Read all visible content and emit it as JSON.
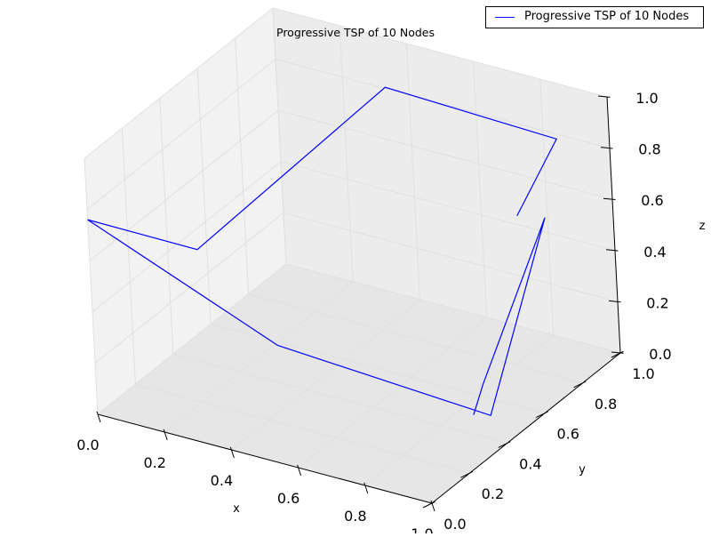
{
  "chart_data": {
    "type": "line",
    "projection": "3d",
    "title": "Progressive TSP of 10 Nodes",
    "xlabel": "x",
    "ylabel": "y",
    "zlabel": "z",
    "xlim": [
      0.0,
      1.0
    ],
    "ylim": [
      0.0,
      1.0
    ],
    "zlim": [
      0.0,
      1.0
    ],
    "x_ticks": [
      "0.0",
      "0.2",
      "0.4",
      "0.6",
      "0.8",
      "1.0"
    ],
    "y_ticks": [
      "0.0",
      "0.2",
      "0.4",
      "0.6",
      "0.8",
      "1.0"
    ],
    "z_ticks": [
      "0.0",
      "0.2",
      "0.4",
      "0.6",
      "0.8",
      "1.0"
    ],
    "grid": true,
    "legend_position": "top-right",
    "series": [
      {
        "name": "Progressive TSP of 10 Nodes",
        "color": "#0000ff",
        "points": [
          {
            "x": 0.72,
            "y": 0.98,
            "z": 0.45
          },
          {
            "x": 0.84,
            "y": 1.0,
            "z": 0.78
          },
          {
            "x": 0.37,
            "y": 0.93,
            "z": 0.86
          },
          {
            "x": 0.06,
            "y": 0.45,
            "z": 0.4
          },
          {
            "x": 0.0,
            "y": 0.0,
            "z": 0.76
          },
          {
            "x": 0.42,
            "y": 0.23,
            "z": 0.28
          },
          {
            "x": 0.96,
            "y": 0.39,
            "z": 0.1
          },
          {
            "x": 0.84,
            "y": 0.92,
            "z": 0.52
          },
          {
            "x": 0.9,
            "y": 0.46,
            "z": 0.16
          },
          {
            "x": 0.92,
            "y": 0.37,
            "z": 0.1
          }
        ]
      }
    ]
  }
}
